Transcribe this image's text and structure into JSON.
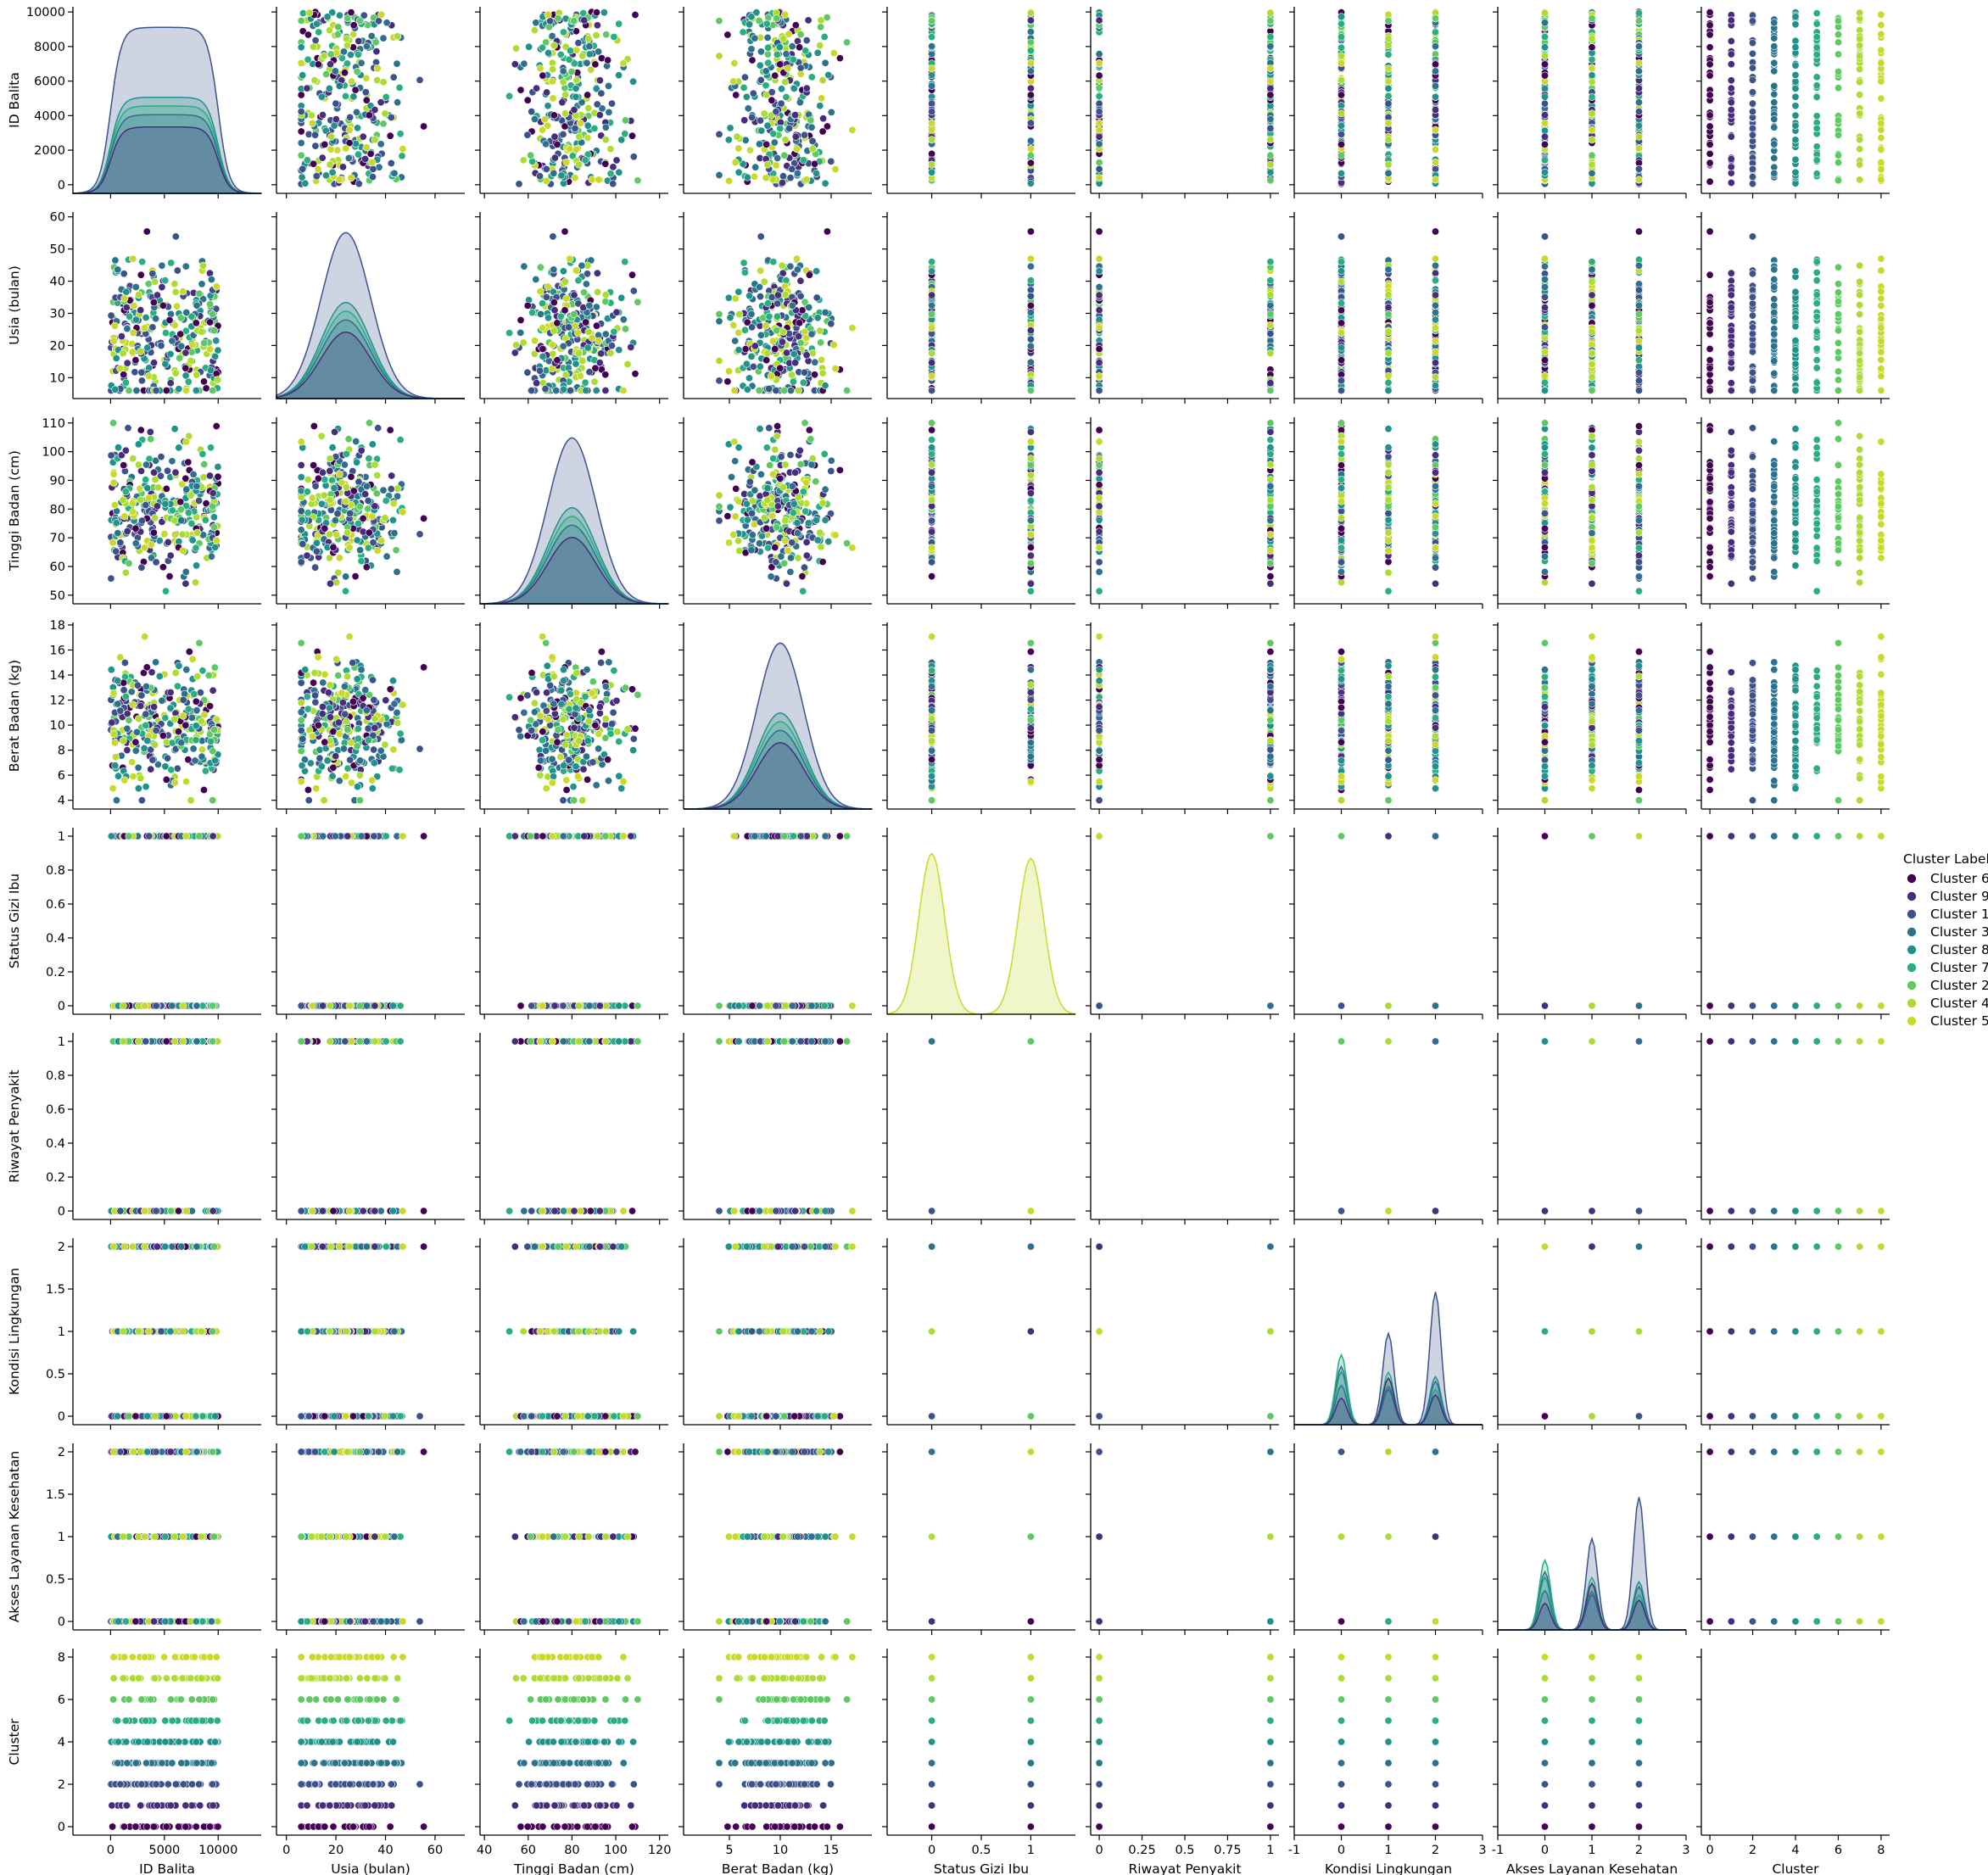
{
  "chart_data": {
    "type": "scatter",
    "subtype": "pairplot",
    "title": "",
    "variables": [
      {
        "name": "ID Balita",
        "ylim": [
          -500,
          10300
        ],
        "xlim": [
          -3500,
          14000
        ],
        "yticks": [
          0,
          2000,
          4000,
          6000,
          8000,
          10000
        ],
        "xticks": [
          0,
          5000,
          10000
        ]
      },
      {
        "name": "Usia (bulan)",
        "ylim": [
          3.5,
          61.5
        ],
        "xlim": [
          -4,
          72
        ],
        "yticks": [
          10,
          20,
          30,
          40,
          50,
          60
        ],
        "xticks": [
          0,
          20,
          40,
          60
        ]
      },
      {
        "name": "Tinggi Badan (cm)",
        "ylim": [
          47,
          112
        ],
        "xlim": [
          38,
          124
        ],
        "yticks": [
          50,
          60,
          70,
          80,
          90,
          100,
          110
        ],
        "xticks": [
          40,
          60,
          80,
          100,
          120
        ]
      },
      {
        "name": "Berat Badan (kg)",
        "ylim": [
          3.3,
          18.2
        ],
        "xlim": [
          0.5,
          19
        ],
        "yticks": [
          4,
          6,
          8,
          10,
          12,
          14,
          16,
          18
        ],
        "xticks": [
          5,
          10,
          15
        ]
      },
      {
        "name": "Status Gizi Ibu",
        "ylim": [
          -0.05,
          1.05
        ],
        "xlim": [
          -0.45,
          1.45
        ],
        "yticks": [
          0.0,
          0.2,
          0.4,
          0.6,
          0.8,
          1.0
        ],
        "xticks": [
          0.0,
          0.5,
          1.0
        ]
      },
      {
        "name": "Riwayat Penyakit",
        "ylim": [
          -0.05,
          1.05
        ],
        "xlim": [
          -0.05,
          1.05
        ],
        "yticks": [
          0.0,
          0.2,
          0.4,
          0.6,
          0.8,
          1.0
        ],
        "xticks": [
          0.0,
          0.25,
          0.5,
          0.75,
          1.0
        ]
      },
      {
        "name": "Kondisi Lingkungan",
        "ylim": [
          -0.1,
          2.1
        ],
        "xlim": [
          -1,
          3
        ],
        "yticks": [
          0.0,
          0.5,
          1.0,
          1.5,
          2.0
        ],
        "xticks": [
          -1,
          0,
          1,
          2,
          3
        ]
      },
      {
        "name": "Akses Layanan Kesehatan",
        "ylim": [
          -0.1,
          2.1
        ],
        "xlim": [
          -1,
          3
        ],
        "yticks": [
          0.0,
          0.5,
          1.0,
          1.5,
          2.0
        ],
        "xticks": [
          -1,
          0,
          1,
          2,
          3
        ]
      },
      {
        "name": "Cluster",
        "ylim": [
          -0.4,
          8.4
        ],
        "xlim": [
          -0.4,
          8.4
        ],
        "yticks": [
          0,
          2,
          4,
          6,
          8
        ],
        "xticks": [
          0,
          2,
          4,
          6,
          8
        ]
      }
    ],
    "hue_variable": "Cluster Label",
    "legend": {
      "title": "Cluster Label",
      "placement": "right",
      "entries": [
        {
          "label": "Cluster 6",
          "color": "#440154"
        },
        {
          "label": "Cluster 9",
          "color": "#472d7b"
        },
        {
          "label": "Cluster 1",
          "color": "#3b528b"
        },
        {
          "label": "Cluster 3",
          "color": "#2c728e"
        },
        {
          "label": "Cluster 8",
          "color": "#21918c"
        },
        {
          "label": "Cluster 7",
          "color": "#28ae80"
        },
        {
          "label": "Cluster 2",
          "color": "#5ec962"
        },
        {
          "label": "Cluster 4",
          "color": "#addc30"
        },
        {
          "label": "Cluster 5",
          "color": "#c8d92b"
        }
      ]
    },
    "grid": false
  }
}
